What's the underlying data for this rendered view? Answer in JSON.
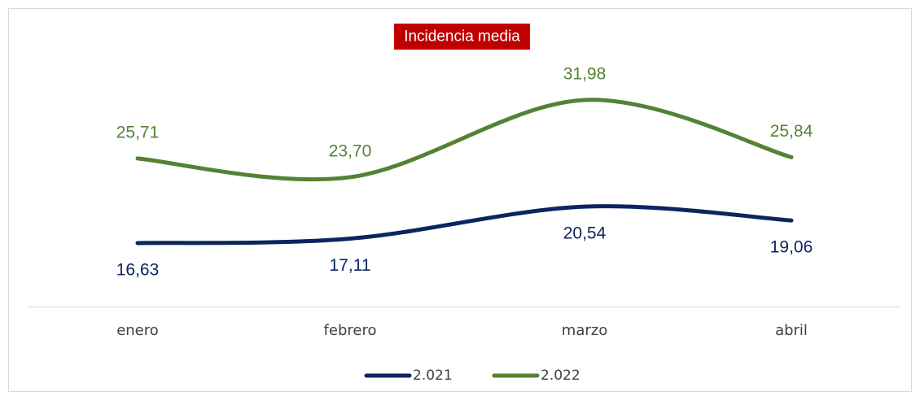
{
  "chart_data": {
    "type": "line",
    "title": "Incidencia media",
    "categories": [
      "enero",
      "febrero",
      "marzo",
      "abril"
    ],
    "series": [
      {
        "name": "2.021",
        "color": "#0d2461",
        "values": [
          16.63,
          17.11,
          20.54,
          19.06
        ],
        "value_labels": [
          "16,63",
          "17,11",
          "20,54",
          "19,06"
        ]
      },
      {
        "name": "2.022",
        "color": "#548235",
        "values": [
          25.71,
          23.7,
          31.98,
          25.84
        ],
        "value_labels": [
          "25,71",
          "23,70",
          "31,98",
          "25,84"
        ]
      }
    ],
    "legend": "bottom",
    "smooth": true
  }
}
